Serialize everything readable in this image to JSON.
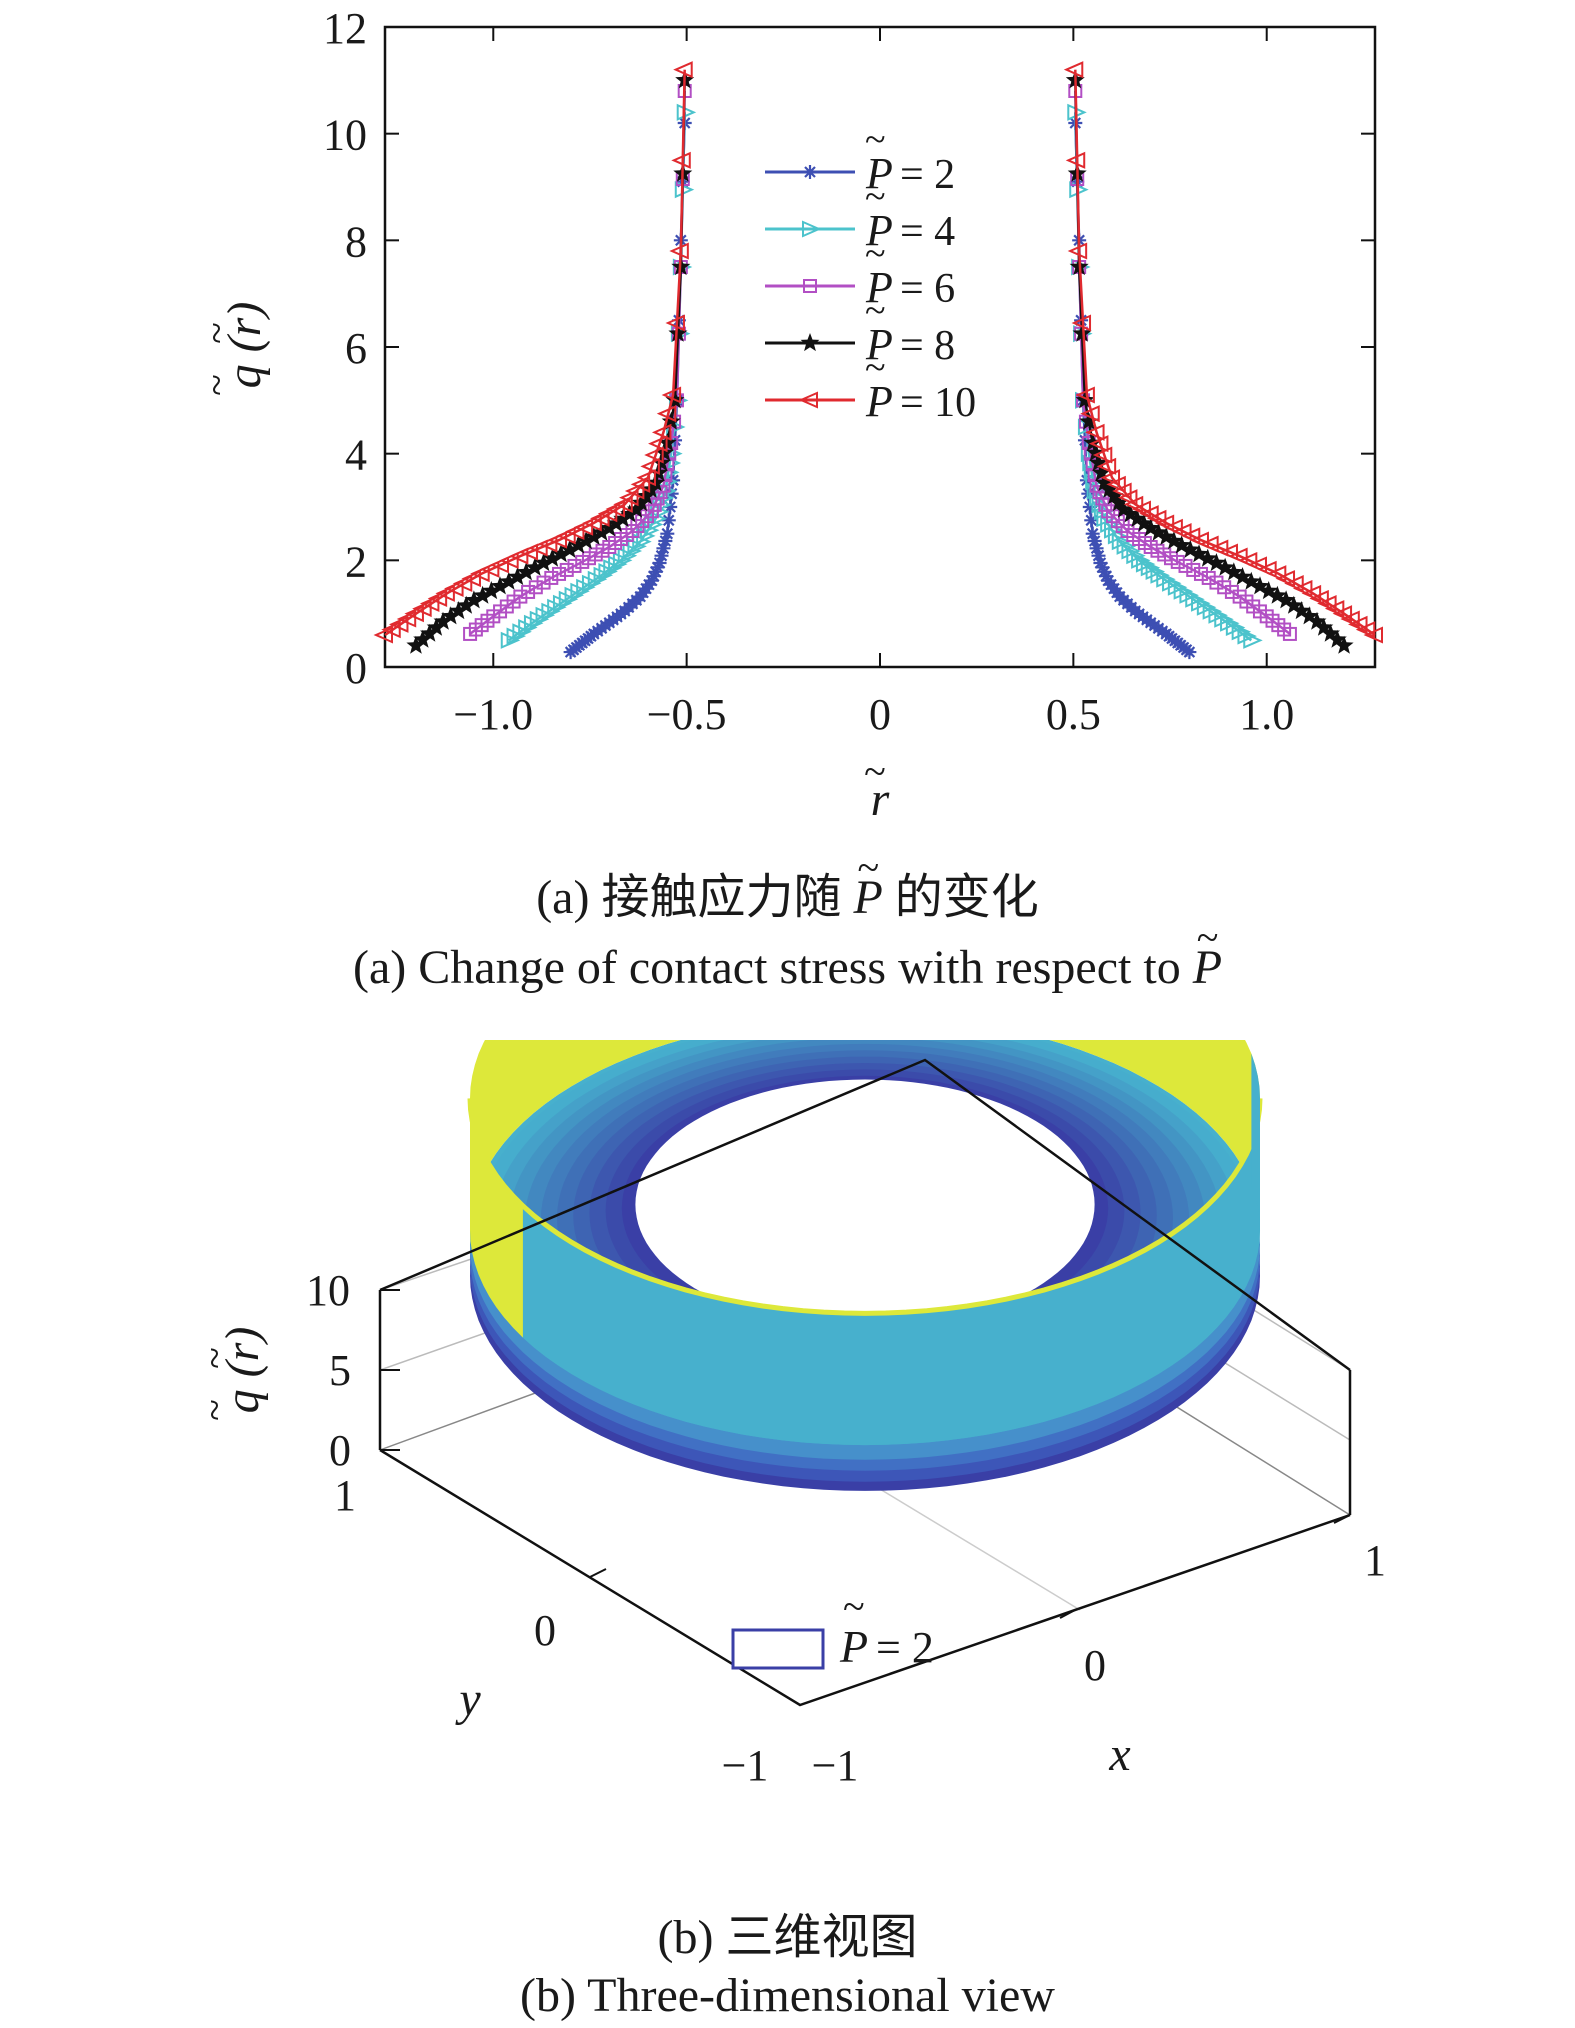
{
  "chart_data": [
    {
      "type": "line",
      "xlabel": "r",
      "ylabel": "q (r)",
      "xlim": [
        -1.28,
        1.28
      ],
      "ylim": [
        0,
        12
      ],
      "xticks": [
        -1.0,
        -0.5,
        0,
        0.5,
        1.0
      ],
      "xtick_labels": [
        "−1.0",
        "−0.5",
        "0",
        "0.5",
        "1.0"
      ],
      "yticks": [
        0,
        2,
        4,
        6,
        8,
        10,
        12
      ],
      "ytick_labels": [
        "0",
        "2",
        "4",
        "6",
        "8",
        "10",
        "12"
      ],
      "legend_position": "upper-center",
      "series": [
        {
          "name": "P = 2",
          "legend_symbol": "P",
          "legend_value": "= 2",
          "color": "#3d4fb3",
          "marker": "asterisk",
          "curve": [
            [
              0.8,
              0.28
            ],
            [
              0.77,
              0.45
            ],
            [
              0.74,
              0.62
            ],
            [
              0.7,
              0.83
            ],
            [
              0.66,
              1.05
            ],
            [
              0.62,
              1.32
            ],
            [
              0.59,
              1.62
            ],
            [
              0.57,
              1.95
            ],
            [
              0.55,
              2.5
            ],
            [
              0.535,
              3.5
            ],
            [
              0.525,
              5.0
            ],
            [
              0.515,
              8.0
            ],
            [
              0.505,
              10.2
            ]
          ]
        },
        {
          "name": "P = 4",
          "legend_symbol": "P",
          "legend_value": "= 4",
          "color": "#4cc3cc",
          "marker": "triangle-right",
          "curve": [
            [
              0.96,
              0.5
            ],
            [
              0.9,
              0.82
            ],
            [
              0.84,
              1.12
            ],
            [
              0.78,
              1.42
            ],
            [
              0.72,
              1.72
            ],
            [
              0.67,
              2.0
            ],
            [
              0.62,
              2.35
            ],
            [
              0.58,
              2.78
            ],
            [
              0.555,
              3.3
            ],
            [
              0.54,
              4.0
            ],
            [
              0.525,
              5.0
            ],
            [
              0.515,
              7.5
            ],
            [
              0.505,
              10.4
            ]
          ]
        },
        {
          "name": "P = 6",
          "legend_symbol": "P",
          "legend_value": "= 6",
          "color": "#b24fc4",
          "marker": "square",
          "curve": [
            [
              1.06,
              0.62
            ],
            [
              1.0,
              0.95
            ],
            [
              0.93,
              1.32
            ],
            [
              0.85,
              1.67
            ],
            [
              0.77,
              1.97
            ],
            [
              0.7,
              2.25
            ],
            [
              0.64,
              2.55
            ],
            [
              0.59,
              2.92
            ],
            [
              0.56,
              3.4
            ],
            [
              0.54,
              4.2
            ],
            [
              0.525,
              5.0
            ],
            [
              0.515,
              7.5
            ],
            [
              0.505,
              10.8
            ]
          ]
        },
        {
          "name": "P = 8",
          "legend_symbol": "P",
          "legend_value": "= 8",
          "color": "#111111",
          "marker": "star",
          "curve": [
            [
              1.2,
              0.4
            ],
            [
              1.13,
              0.85
            ],
            [
              1.05,
              1.25
            ],
            [
              0.96,
              1.6
            ],
            [
              0.87,
              1.95
            ],
            [
              0.78,
              2.28
            ],
            [
              0.7,
              2.6
            ],
            [
              0.63,
              2.95
            ],
            [
              0.58,
              3.45
            ],
            [
              0.55,
              4.2
            ],
            [
              0.53,
              5.0
            ],
            [
              0.515,
              7.5
            ],
            [
              0.505,
              11.0
            ]
          ]
        },
        {
          "name": "P = 10",
          "legend_symbol": "P",
          "legend_value": "= 10",
          "color": "#e02a2f",
          "marker": "triangle-left",
          "curve": [
            [
              1.28,
              0.6
            ],
            [
              1.2,
              1.0
            ],
            [
              1.12,
              1.38
            ],
            [
              1.03,
              1.75
            ],
            [
              0.93,
              2.08
            ],
            [
              0.83,
              2.38
            ],
            [
              0.74,
              2.7
            ],
            [
              0.66,
              3.05
            ],
            [
              0.6,
              3.55
            ],
            [
              0.56,
              4.4
            ],
            [
              0.535,
              5.1
            ],
            [
              0.515,
              7.8
            ],
            [
              0.505,
              11.2
            ]
          ]
        }
      ],
      "caption_cn_prefix": "(a) 接触应力随",
      "caption_cn_symbol": "P",
      "caption_cn_suffix": "的变化",
      "caption_en_prefix": "(a) Change of contact stress with respect to",
      "caption_en_symbol": "P"
    },
    {
      "type": "surface",
      "xlabel": "x",
      "ylabel": "y",
      "zlabel": "q (r)",
      "xlim": [
        -1,
        1
      ],
      "ylim": [
        -1,
        1
      ],
      "zlim": [
        0,
        10
      ],
      "x_tick_labels": [
        "−1",
        "0",
        "1"
      ],
      "y_tick_labels": [
        "−1",
        "0",
        "1"
      ],
      "z_tick_labels": [
        "0",
        "5",
        "10"
      ],
      "legend_symbol": "P",
      "legend_value": "= 2",
      "legend_position": "bottom-center",
      "inner_radius": 0.5,
      "outer_radius": 0.8,
      "peak_height": 10.2,
      "colors": {
        "high": "#dde83a",
        "mid": "#47b0cd",
        "low": "#3a3fa6"
      },
      "caption_cn": "(b) 三维视图",
      "caption_en": "(b) Three-dimensional view"
    }
  ]
}
